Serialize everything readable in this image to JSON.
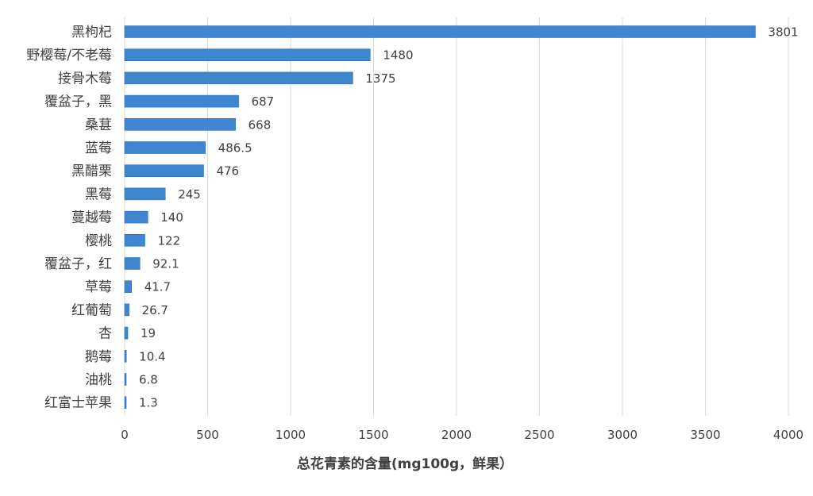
{
  "chart_data": {
    "type": "bar",
    "orientation": "horizontal",
    "categories": [
      "黑枸杞",
      "野樱莓/不老莓",
      "接骨木莓",
      "覆盆子，黑",
      "桑葚",
      "蓝莓",
      "黑醋栗",
      "黑莓",
      "蔓越莓",
      "樱桃",
      "覆盆子，红",
      "草莓",
      "红葡萄",
      "杏",
      "鹅莓",
      "油桃",
      "红富士苹果"
    ],
    "values": [
      3801,
      1480,
      1375,
      687,
      668,
      486.5,
      476,
      245,
      140,
      122,
      92.1,
      41.7,
      26.7,
      19,
      10.4,
      6.8,
      1.3
    ],
    "value_labels": [
      "3801",
      "1480",
      "1375",
      "687",
      "668",
      "486.5",
      "476",
      "245",
      "140",
      "122",
      "92.1",
      "41.7",
      "26.7",
      "19",
      "10.4",
      "6.8",
      "1.3"
    ],
    "title": "",
    "xlabel": "总花青素的含量(mg100g，鲜果）",
    "ylabel": "",
    "xlim": [
      0,
      4000
    ],
    "xticks": [
      0,
      500,
      1000,
      1500,
      2000,
      2500,
      3000,
      3500,
      4000
    ],
    "xtick_labels": [
      "0",
      "500",
      "1000",
      "1500",
      "2000",
      "2500",
      "3000",
      "3500",
      "4000"
    ],
    "grid": "vertical",
    "legend": "none",
    "colors": {
      "bar": "#3f86d1",
      "bar_edge": "#2f6fb6",
      "grid": "#d9d9d9",
      "text": "#404040"
    }
  }
}
